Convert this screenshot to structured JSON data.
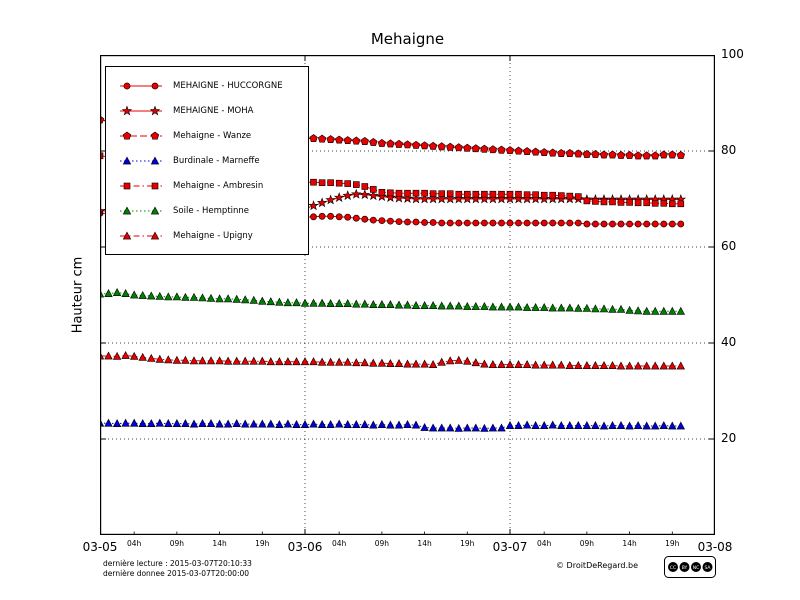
{
  "title": "Mehaigne",
  "ylabel": "Hauteur cm",
  "footer": {
    "line1": "dernière lecture : 2015-03-07T20:10:33",
    "line2": "dernière donnee  2015-03-07T20:00:00",
    "copyright": "© DroitDeRegard.be",
    "license": "CC BY NC SA"
  },
  "chart_data": {
    "type": "line",
    "title": "Mehaigne",
    "xlabel": "",
    "ylabel": "Hauteur cm",
    "x_start": "2015-03-05T00:00",
    "x_step_hours": 1,
    "x_range_hours": [
      0,
      72
    ],
    "ylim": [
      0,
      100
    ],
    "grid": true,
    "legend_position": "upper-left",
    "y_ticks": [
      20,
      40,
      60,
      80,
      100
    ],
    "x_ticks": {
      "major": [
        {
          "h": 0,
          "label": "03-05"
        },
        {
          "h": 24,
          "label": "03-06"
        },
        {
          "h": 48,
          "label": "03-07"
        },
        {
          "h": 72,
          "label": "03-08"
        }
      ],
      "minor": [
        {
          "h": 4,
          "label": "04h"
        },
        {
          "h": 9,
          "label": "09h"
        },
        {
          "h": 14,
          "label": "14h"
        },
        {
          "h": 19,
          "label": "19h"
        },
        {
          "h": 28,
          "label": "04h"
        },
        {
          "h": 33,
          "label": "09h"
        },
        {
          "h": 38,
          "label": "14h"
        },
        {
          "h": 43,
          "label": "19h"
        },
        {
          "h": 52,
          "label": "04h"
        },
        {
          "h": 57,
          "label": "09h"
        },
        {
          "h": 62,
          "label": "14h"
        },
        {
          "h": 67,
          "label": "19h"
        }
      ]
    },
    "series": [
      {
        "name": "MEHAIGNE - HUCCORGNE",
        "color": "#e60000",
        "line": "solid",
        "marker": "circle",
        "values": [
          67,
          67,
          67,
          66.9,
          66.9,
          66.8,
          66.8,
          66.8,
          66.7,
          66.7,
          66.6,
          66.6,
          66.5,
          66.5,
          66.5,
          66.4,
          66.4,
          66.4,
          66.3,
          66.3,
          66.3,
          66.2,
          66.2,
          66.2,
          66.2,
          66.3,
          66.4,
          66.4,
          66.3,
          66.2,
          66,
          65.8,
          65.6,
          65.5,
          65.4,
          65.3,
          65.2,
          65.2,
          65.1,
          65.1,
          65,
          65,
          65,
          65,
          65,
          65,
          65,
          65,
          65,
          65,
          65,
          65,
          65,
          65,
          65,
          65,
          65,
          64.8,
          64.8,
          64.8,
          64.8,
          64.8,
          64.8,
          64.8,
          64.8,
          64.8,
          64.8,
          64.8,
          64.8
        ]
      },
      {
        "name": "MEHAIGNE - MOHA",
        "color": "#e60000",
        "line": "solid",
        "marker": "star",
        "values": [
          67.5,
          67.5,
          67.4,
          67.4,
          67.4,
          67.4,
          67.5,
          67.4,
          67.4,
          67.3,
          67.3,
          67.3,
          67.3,
          67.2,
          67.2,
          67.2,
          67.3,
          67.4,
          67.4,
          67.5,
          67.6,
          67.7,
          67.8,
          67.9,
          68,
          68.6,
          69.2,
          69.8,
          70.3,
          70.7,
          71,
          70.9,
          70.7,
          70.5,
          70.3,
          70.2,
          70.1,
          70,
          70,
          70,
          70,
          70,
          70,
          70,
          70,
          70,
          70,
          70,
          70,
          70,
          70,
          70,
          70,
          70,
          70,
          70,
          70,
          69.9,
          69.9,
          69.9,
          69.9,
          69.9,
          69.9,
          69.9,
          69.9,
          69.9,
          69.9,
          69.9,
          69.9
        ]
      },
      {
        "name": "Mehaigne - Wanze",
        "color": "#e60000",
        "line": "dashed",
        "marker": "pentagon",
        "values": [
          86.5,
          86.2,
          86,
          85.8,
          85.5,
          85.2,
          85,
          84.8,
          84.5,
          84.3,
          84.1,
          83.9,
          83.7,
          83.5,
          83.4,
          83.3,
          83.2,
          83.1,
          83,
          82.9,
          82.8,
          82.8,
          82.7,
          82.6,
          82.6,
          82.6,
          82.5,
          82.4,
          82.3,
          82.2,
          82.1,
          82,
          81.8,
          81.6,
          81.5,
          81.4,
          81.3,
          81.2,
          81.1,
          81,
          80.9,
          80.8,
          80.7,
          80.6,
          80.5,
          80.4,
          80.3,
          80.2,
          80.1,
          80,
          79.9,
          79.8,
          79.7,
          79.6,
          79.5,
          79.5,
          79.4,
          79.3,
          79.3,
          79.2,
          79.2,
          79.1,
          79.1,
          79,
          79,
          79,
          79.2,
          79.2,
          79.1
        ]
      },
      {
        "name": "Burdinale - Marneffe",
        "color": "#0000dd",
        "line": "dotted",
        "marker": "triangle",
        "values": [
          23.3,
          23.3,
          23.2,
          23.3,
          23.3,
          23.2,
          23.2,
          23.3,
          23.2,
          23.2,
          23.2,
          23.1,
          23.2,
          23.2,
          23.1,
          23.1,
          23.2,
          23.1,
          23.1,
          23.1,
          23.1,
          23,
          23.1,
          23,
          23,
          23.1,
          23,
          23,
          23.1,
          23,
          23,
          23,
          22.9,
          23,
          22.9,
          22.9,
          23,
          22.9,
          22.4,
          22.3,
          22.3,
          22.3,
          22.2,
          22.3,
          22.3,
          22.2,
          22.3,
          22.3,
          22.8,
          22.8,
          22.9,
          22.8,
          22.8,
          22.9,
          22.8,
          22.8,
          22.8,
          22.8,
          22.8,
          22.7,
          22.8,
          22.8,
          22.7,
          22.8,
          22.7,
          22.7,
          22.8,
          22.7,
          22.7
        ]
      },
      {
        "name": "Mehaigne - Ambresin",
        "color": "#e60000",
        "line": "dashdot",
        "marker": "square",
        "values": [
          79,
          78.8,
          78.5,
          78.2,
          77.9,
          77.6,
          77.2,
          76.8,
          76.4,
          76,
          75.6,
          75.2,
          74.9,
          74.6,
          74.3,
          74.1,
          73.9,
          73.7,
          73.6,
          73.5,
          73.4,
          73.3,
          73.3,
          73.4,
          73.5,
          73.5,
          73.4,
          73.4,
          73.3,
          73.2,
          73,
          72.6,
          72,
          71.4,
          71.3,
          71.2,
          71.2,
          71.2,
          71.2,
          71.1,
          71.1,
          71.1,
          71,
          71,
          71,
          71,
          71,
          71,
          71,
          71,
          70.9,
          70.9,
          70.8,
          70.8,
          70.7,
          70.6,
          70.5,
          69.6,
          69.5,
          69.4,
          69.4,
          69.3,
          69.3,
          69.2,
          69.2,
          69.1,
          69.1,
          69,
          69
        ]
      },
      {
        "name": "Soile - Hemptinne",
        "color": "#008000",
        "line": "dotted",
        "marker": "triangle",
        "values": [
          50.2,
          50.3,
          50.5,
          50.3,
          50,
          49.9,
          49.8,
          49.7,
          49.6,
          49.6,
          49.5,
          49.5,
          49.4,
          49.3,
          49.2,
          49.2,
          49.1,
          49,
          48.9,
          48.7,
          48.6,
          48.5,
          48.4,
          48.4,
          48.3,
          48.3,
          48.3,
          48.2,
          48.2,
          48.2,
          48.1,
          48.1,
          48,
          48,
          48,
          47.9,
          47.9,
          47.8,
          47.8,
          47.8,
          47.7,
          47.7,
          47.7,
          47.6,
          47.6,
          47.6,
          47.5,
          47.5,
          47.5,
          47.5,
          47.4,
          47.4,
          47.4,
          47.3,
          47.3,
          47.3,
          47.2,
          47.2,
          47.1,
          47.1,
          47,
          47,
          46.8,
          46.7,
          46.6,
          46.6,
          46.6,
          46.6,
          46.6
        ]
      },
      {
        "name": "Mehaigne - Upigny",
        "color": "#e60000",
        "line": "dashdot",
        "marker": "triangle",
        "values": [
          37.3,
          37.3,
          37.2,
          37.4,
          37.2,
          37,
          36.8,
          36.6,
          36.5,
          36.4,
          36.4,
          36.3,
          36.3,
          36.3,
          36.3,
          36.2,
          36.2,
          36.2,
          36.2,
          36.2,
          36.1,
          36.1,
          36.1,
          36.1,
          36.1,
          36.1,
          36,
          36,
          36,
          36,
          35.9,
          35.9,
          35.8,
          35.8,
          35.7,
          35.7,
          35.6,
          35.6,
          35.6,
          35.5,
          36,
          36.3,
          36.4,
          36.2,
          35.9,
          35.6,
          35.5,
          35.5,
          35.5,
          35.5,
          35.5,
          35.4,
          35.4,
          35.4,
          35.4,
          35.3,
          35.3,
          35.3,
          35.3,
          35.3,
          35.3,
          35.2,
          35.2,
          35.2,
          35.2,
          35.2,
          35.2,
          35.2,
          35.2
        ]
      }
    ]
  }
}
